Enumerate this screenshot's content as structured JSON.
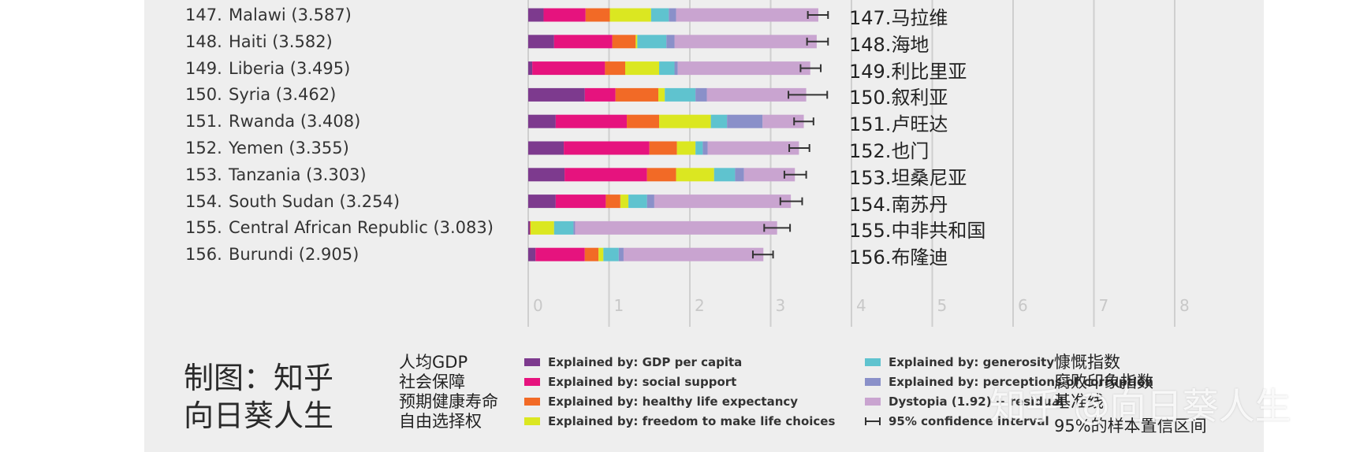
{
  "chart_data": {
    "type": "bar",
    "stacked": true,
    "orientation": "horizontal",
    "xlim": [
      0,
      8
    ],
    "xticks": [
      "0",
      "1",
      "2",
      "3",
      "4",
      "5",
      "6",
      "7",
      "8"
    ],
    "rows": [
      {
        "rank": "147.",
        "en": "Malawi (3.587)",
        "cn": "147.马拉维",
        "values": [
          0.19,
          0.52,
          0.3,
          0.51,
          0.22,
          0.09,
          1.76
        ],
        "ci": [
          3.46,
          3.71
        ]
      },
      {
        "rank": "148.",
        "en": "Haiti (3.582)",
        "cn": "148.海地",
        "values": [
          0.32,
          0.72,
          0.29,
          0.02,
          0.36,
          0.1,
          1.76
        ],
        "ci": [
          3.45,
          3.71
        ]
      },
      {
        "rank": "149.",
        "en": "Liberia (3.495)",
        "cn": "149.利比里亚",
        "values": [
          0.05,
          0.9,
          0.25,
          0.42,
          0.19,
          0.04,
          1.64
        ],
        "ci": [
          3.37,
          3.62
        ]
      },
      {
        "rank": "150.",
        "en": "Syria (3.462)",
        "cn": "150.叙利亚",
        "values": [
          0.7,
          0.38,
          0.53,
          0.08,
          0.38,
          0.14,
          1.23
        ],
        "ci": [
          3.22,
          3.7
        ]
      },
      {
        "rank": "151.",
        "en": "Rwanda (3.408)",
        "cn": "151.卢旺达",
        "values": [
          0.34,
          0.88,
          0.4,
          0.64,
          0.2,
          0.44,
          0.51
        ],
        "ci": [
          3.29,
          3.53
        ]
      },
      {
        "rank": "152.",
        "en": "Yemen (3.355)",
        "cn": "152.也门",
        "values": [
          0.44,
          1.06,
          0.34,
          0.23,
          0.09,
          0.06,
          1.13
        ],
        "ci": [
          3.23,
          3.48
        ]
      },
      {
        "rank": "153.",
        "en": "Tanzania (3.303)",
        "cn": "153.坦桑尼亚",
        "values": [
          0.45,
          1.02,
          0.36,
          0.47,
          0.26,
          0.11,
          0.63
        ],
        "ci": [
          3.17,
          3.44
        ]
      },
      {
        "rank": "154.",
        "en": "South Sudan (3.254)",
        "cn": "154.南苏丹",
        "values": [
          0.34,
          0.62,
          0.18,
          0.1,
          0.23,
          0.09,
          1.69
        ],
        "ci": [
          3.12,
          3.39
        ]
      },
      {
        "rank": "155.",
        "en": "Central African Republic (3.083)",
        "cn": "155.中非共和国",
        "values": [
          0.02,
          0.0,
          0.01,
          0.29,
          0.24,
          0.02,
          2.5
        ],
        "ci": [
          2.92,
          3.24
        ]
      },
      {
        "rank": "156.",
        "en": "Burundi (2.905)",
        "cn": "156.布隆迪",
        "values": [
          0.09,
          0.61,
          0.17,
          0.06,
          0.19,
          0.06,
          1.73
        ],
        "ci": [
          2.78,
          3.03
        ]
      }
    ],
    "series": [
      {
        "name": "Explained by: GDP per capita",
        "cn": "人均GDP",
        "color": "#7d3a8e"
      },
      {
        "name": "Explained by: social support",
        "cn": "社会保障",
        "color": "#e6137e"
      },
      {
        "name": "Explained by: healthy life expectancy",
        "cn": "预期健康寿命",
        "color": "#f26a26"
      },
      {
        "name": "Explained by: freedom to make life choices",
        "cn": "自由选择权",
        "color": "#dbe721"
      },
      {
        "name": "Explained by: generosity",
        "cn": "慷慨指数",
        "color": "#5fc3cf"
      },
      {
        "name": "Explained by: perceptions of corruption",
        "cn": "腐败印象指数",
        "color": "#8a90c9"
      },
      {
        "name": "Dystopia (1.92) + residual",
        "cn": "基准线",
        "color": "#c9a4d0"
      }
    ],
    "ci_legend": {
      "label": "95% confidence interval",
      "cn": "95%的样本置信区间"
    }
  },
  "credit": {
    "line1": "制图：知乎",
    "line2": "向日葵人生"
  },
  "watermark": "知乎 @向日葵人生"
}
